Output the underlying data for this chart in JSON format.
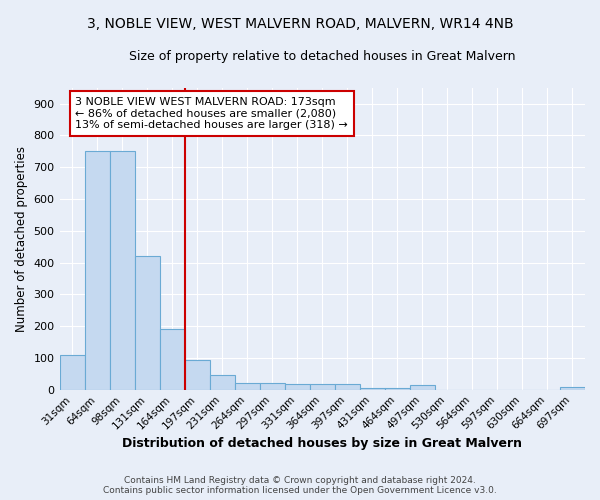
{
  "title": "3, NOBLE VIEW, WEST MALVERN ROAD, MALVERN, WR14 4NB",
  "subtitle": "Size of property relative to detached houses in Great Malvern",
  "xlabel": "Distribution of detached houses by size in Great Malvern",
  "ylabel": "Number of detached properties",
  "footer_line1": "Contains HM Land Registry data © Crown copyright and database right 2024.",
  "footer_line2": "Contains public sector information licensed under the Open Government Licence v3.0.",
  "categories": [
    "31sqm",
    "64sqm",
    "98sqm",
    "131sqm",
    "164sqm",
    "197sqm",
    "231sqm",
    "264sqm",
    "297sqm",
    "331sqm",
    "364sqm",
    "397sqm",
    "431sqm",
    "464sqm",
    "497sqm",
    "530sqm",
    "564sqm",
    "597sqm",
    "630sqm",
    "664sqm",
    "697sqm"
  ],
  "values": [
    110,
    750,
    750,
    420,
    190,
    95,
    47,
    22,
    22,
    18,
    18,
    18,
    5,
    5,
    15,
    0,
    0,
    0,
    0,
    0,
    8
  ],
  "bar_color": "#c5d9f0",
  "bar_edge_color": "#6aaad4",
  "background_color": "#e8eef8",
  "grid_color": "#ffffff",
  "red_line_color": "#cc0000",
  "annotation_text": "3 NOBLE VIEW WEST MALVERN ROAD: 173sqm\n← 86% of detached houses are smaller (2,080)\n13% of semi-detached houses are larger (318) →",
  "annotation_box_color": "#ffffff",
  "annotation_border_color": "#cc0000",
  "ylim": [
    0,
    950
  ],
  "yticks": [
    0,
    100,
    200,
    300,
    400,
    500,
    600,
    700,
    800,
    900
  ],
  "red_line_bin_index": 4,
  "title_fontsize": 10,
  "subtitle_fontsize": 9
}
